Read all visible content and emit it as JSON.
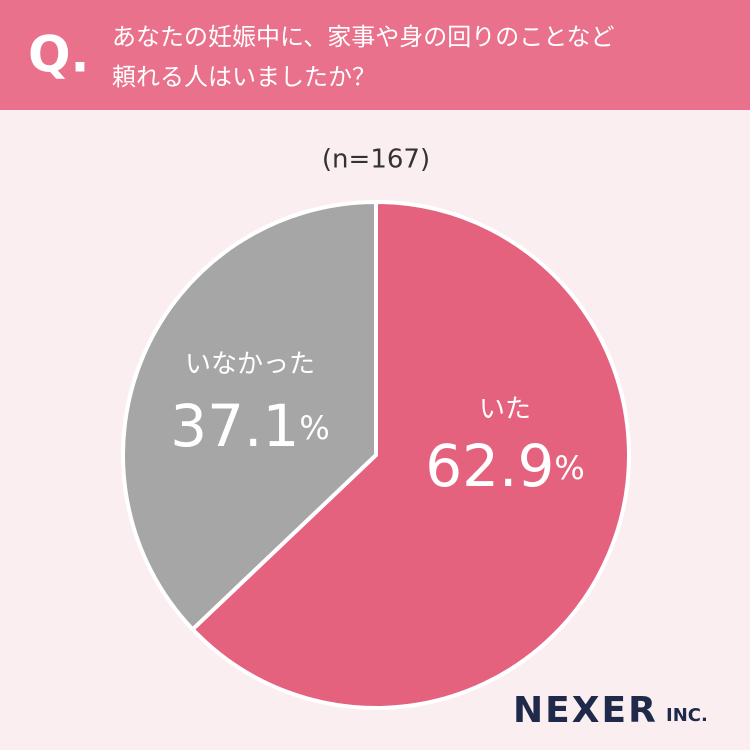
{
  "header": {
    "mark": "Q."
  },
  "chart_data": {
    "type": "pie",
    "title": [
      "あなたの妊娠中に、家事や身の回りのことなど",
      "頼れる人はいましたか？"
    ],
    "subtitle": "(n=167)",
    "categories": [
      "いた",
      "いなかった"
    ],
    "values": [
      62.9,
      37.1
    ],
    "value_labels": [
      "62.9%",
      "37.1%"
    ],
    "colors": [
      "#e5627f",
      "#a6a6a6"
    ]
  },
  "footer": {
    "logo": "NEXER",
    "logo_suffix": "INC."
  }
}
